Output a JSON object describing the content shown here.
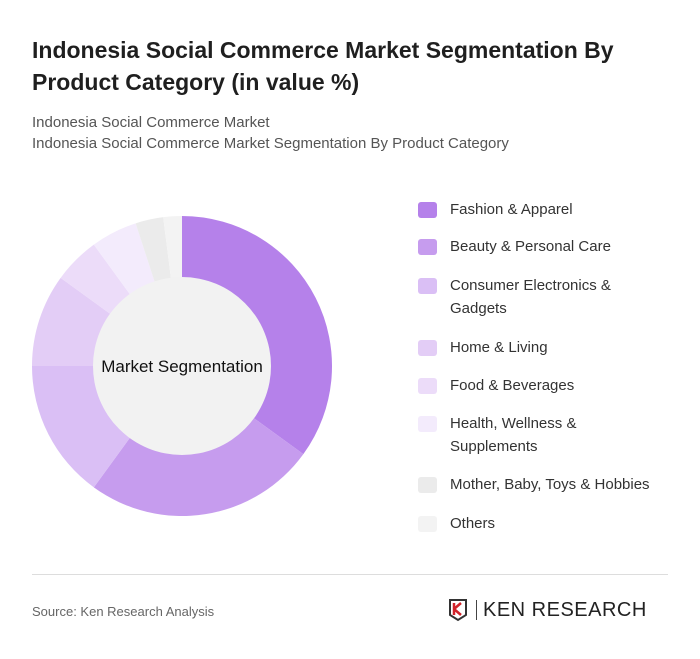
{
  "title": "Indonesia Social Commerce Market Segmentation By Product Category (in value %)",
  "subtitle1": "Indonesia Social Commerce Market",
  "subtitle2": "Indonesia Social Commerce Market Segmentation By Product Category",
  "source": "Source: Ken Research Analysis",
  "logo_text": "KEN RESEARCH",
  "chart_data": {
    "type": "pie",
    "variant": "donut",
    "center_label": "Market Segmentation",
    "legend_position": "right",
    "categories": [
      "Fashion & Apparel",
      "Beauty & Personal Care",
      "Consumer Electronics & Gadgets",
      "Home & Living",
      "Food & Beverages",
      "Health, Wellness & Supplements",
      "Mother, Baby, Toys & Hobbies",
      "Others"
    ],
    "legend_lines": [
      [
        "Fashion & Apparel"
      ],
      [
        "Beauty & Personal Care"
      ],
      [
        "Consumer Electronics &",
        "Gadgets"
      ],
      [
        "Home & Living"
      ],
      [
        "Food & Beverages"
      ],
      [
        "Health, Wellness &",
        "Supplements"
      ],
      [
        "Mother, Baby, Toys & Hobbies"
      ],
      [
        "Others"
      ]
    ],
    "values": [
      35,
      25,
      15,
      10,
      5,
      5,
      3,
      2
    ],
    "colors": [
      "#b581ea",
      "#c69cee",
      "#dabff5",
      "#e3cdf6",
      "#ecdcf9",
      "#f3ebfc",
      "#ebebeb",
      "#f3f3f3"
    ]
  }
}
